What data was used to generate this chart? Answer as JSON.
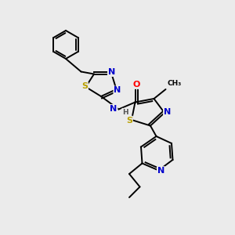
{
  "background_color": "#ebebeb",
  "bond_color": "#000000",
  "atom_colors": {
    "N": "#0000cc",
    "S": "#b8a000",
    "O": "#ff0000",
    "H": "#555555",
    "C": "#000000"
  },
  "lw": 1.4,
  "fs": 8.0
}
